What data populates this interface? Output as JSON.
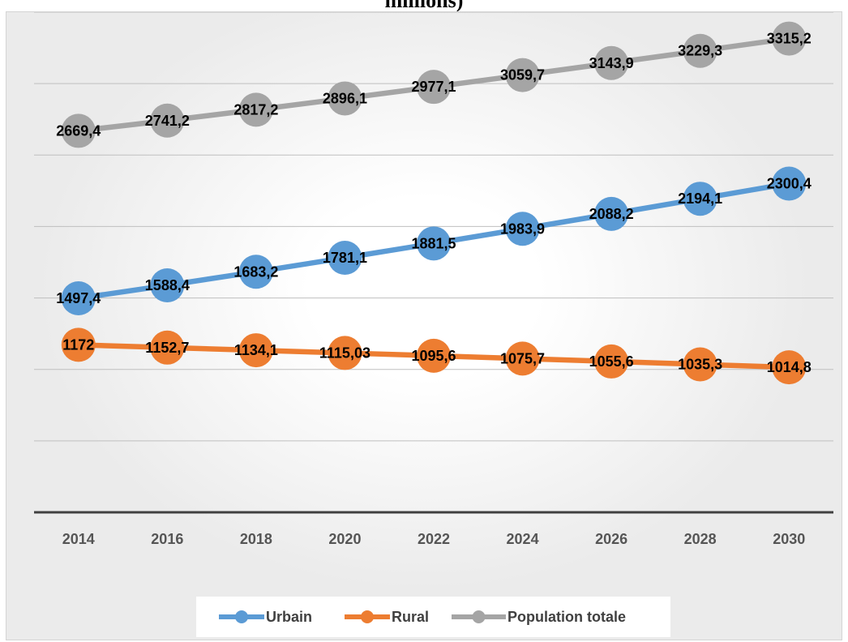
{
  "title_fragment": "millions)",
  "chart_data": {
    "type": "line",
    "categories": [
      "2014",
      "2016",
      "2018",
      "2020",
      "2022",
      "2024",
      "2026",
      "2028",
      "2030"
    ],
    "series": [
      {
        "name": "Urbain",
        "color": "#5b9bd5",
        "values": [
          1497.4,
          1588.4,
          1683.2,
          1781.1,
          1881.5,
          1983.9,
          2088.2,
          2194.1,
          2300.4
        ],
        "labels": [
          "1497,4",
          "1588,4",
          "1683,2",
          "1781,1",
          "1881,5",
          "1983,9",
          "2088,2",
          "2194,1",
          "2300,4"
        ]
      },
      {
        "name": "Rural",
        "color": "#ed7d31",
        "values": [
          1172,
          1152.7,
          1134.1,
          1115.03,
          1095.6,
          1075.7,
          1055.6,
          1035.3,
          1014.8
        ],
        "labels": [
          "1172",
          "1152,7",
          "1134,1",
          "1115,03",
          "1095,6",
          "1075,7",
          "1055,6",
          "1035,3",
          "1014,8"
        ]
      },
      {
        "name": "Population totale",
        "color": "#a5a5a5",
        "values": [
          2669.4,
          2741.2,
          2817.2,
          2896.1,
          2977.1,
          3059.7,
          3143.9,
          3229.3,
          3315.2
        ],
        "labels": [
          "2669,4",
          "2741,2",
          "2817,2",
          "2896,1",
          "2977,1",
          "3059,7",
          "3143,9",
          "3229,3",
          "3315,2"
        ]
      }
    ],
    "ylim": [
      0,
      3500
    ],
    "y_major_unit": 500,
    "grid": true,
    "y_tick_labels_shown": false,
    "legend": "bottom"
  }
}
